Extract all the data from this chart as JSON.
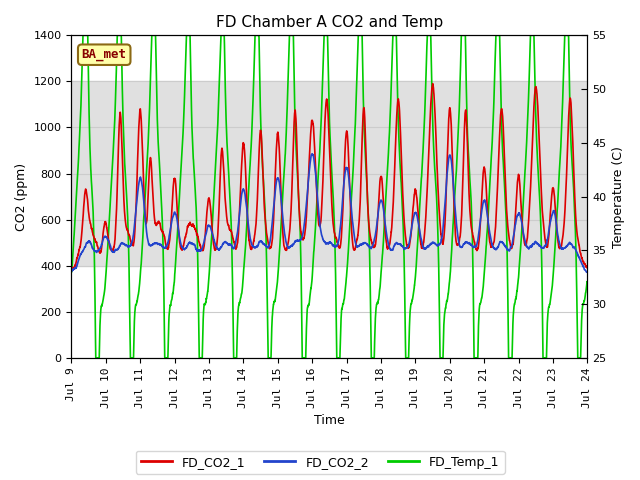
{
  "title": "FD Chamber A CO2 and Temp",
  "xlabel": "Time",
  "ylabel_left": "CO2 (ppm)",
  "ylabel_right": "Temperature (C)",
  "ylim_left": [
    0,
    1400
  ],
  "ylim_right": [
    25,
    55
  ],
  "xlim_hours": [
    0,
    360
  ],
  "xtick_labels": [
    "Jul 9",
    "Jul 10",
    "Jul 11",
    "Jul 12",
    "Jul 13",
    "Jul 14",
    "Jul 15",
    "Jul 16",
    "Jul 17",
    "Jul 18",
    "Jul 19",
    "Jul 20",
    "Jul 21",
    "Jul 22",
    "Jul 23",
    "Jul 24"
  ],
  "xtick_positions": [
    0,
    24,
    48,
    72,
    96,
    120,
    144,
    168,
    192,
    216,
    240,
    264,
    288,
    312,
    336,
    360
  ],
  "shaded_band": [
    400,
    1200
  ],
  "shaded_band_color": "#e0e0e0",
  "legend_entries": [
    "FD_CO2_1",
    "FD_CO2_2",
    "FD_Temp_1"
  ],
  "line_colors": [
    "#dd0000",
    "#2244cc",
    "#00cc00"
  ],
  "annotation_text": "BA_met",
  "annotation_facecolor": "#ffffaa",
  "annotation_edgecolor": "#8B6914",
  "annotation_textcolor": "#880000",
  "plot_facecolor": "#ffffff",
  "fig_facecolor": "#ffffff",
  "grid_color": "#cccccc",
  "title_fontsize": 11,
  "axis_label_fontsize": 9,
  "tick_fontsize": 8,
  "legend_fontsize": 9,
  "linewidth": 1.2
}
